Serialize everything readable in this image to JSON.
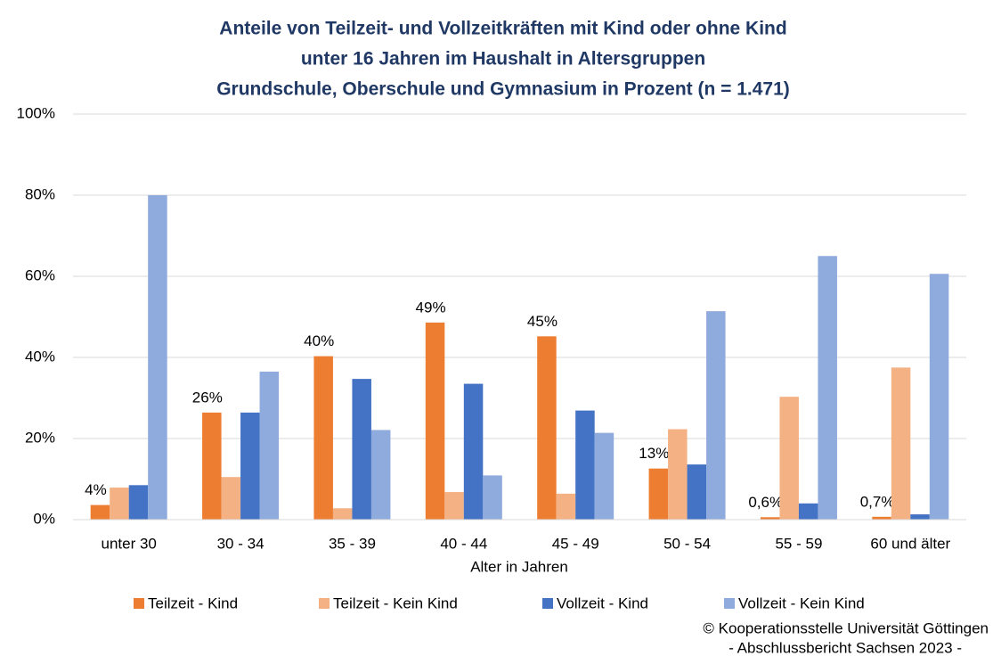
{
  "chart_data": {
    "type": "bar",
    "title": [
      "Anteile von Teilzeit- und Vollzeitkräften mit Kind oder ohne Kind",
      "unter 16 Jahren im Haushalt in Altersgruppen",
      "Grundschule, Oberschule und Gymnasium in Prozent (n = 1.471)"
    ],
    "x_label": "Alter in Jahren",
    "categories": [
      "unter 30",
      "30 - 34",
      "35 - 39",
      "40 - 44",
      "45 - 49",
      "50 - 54",
      "55 - 59",
      "60 und älter"
    ],
    "series": [
      {
        "name": "Teilzeit - Kind",
        "color": "#ed7d31",
        "values": [
          3.6,
          26.4,
          40.3,
          48.6,
          45.2,
          12.6,
          0.6,
          0.7
        ],
        "value_labels": [
          "4%",
          "26%",
          "40%",
          "49%",
          "45%",
          "13%",
          "0,6%",
          "0,7%"
        ]
      },
      {
        "name": "Teilzeit - Kein Kind",
        "color": "#f4b183",
        "values": [
          7.9,
          10.5,
          2.8,
          6.8,
          6.4,
          22.3,
          30.3,
          37.5
        ]
      },
      {
        "name": "Vollzeit - Kind",
        "color": "#4472c4",
        "values": [
          8.5,
          26.4,
          34.7,
          33.5,
          26.9,
          13.6,
          4.0,
          1.3
        ]
      },
      {
        "name": "Vollzeit - Kein Kind",
        "color": "#8faadc",
        "values": [
          80.0,
          36.5,
          22.1,
          10.9,
          21.4,
          51.4,
          65.0,
          60.6
        ]
      }
    ],
    "ylim": [
      0,
      100
    ],
    "yticks": [
      {
        "value": 0,
        "label": "0%"
      },
      {
        "value": 20,
        "label": "20%"
      },
      {
        "value": 40,
        "label": "40%"
      },
      {
        "value": 60,
        "label": "60%"
      },
      {
        "value": 80,
        "label": "80%"
      },
      {
        "value": 100,
        "label": "100%"
      }
    ],
    "grid": true,
    "legend": "bottom",
    "source": [
      "© Kooperationsstelle Universität Göttingen",
      "- Abschlussbericht Sachsen 2023 -"
    ]
  }
}
